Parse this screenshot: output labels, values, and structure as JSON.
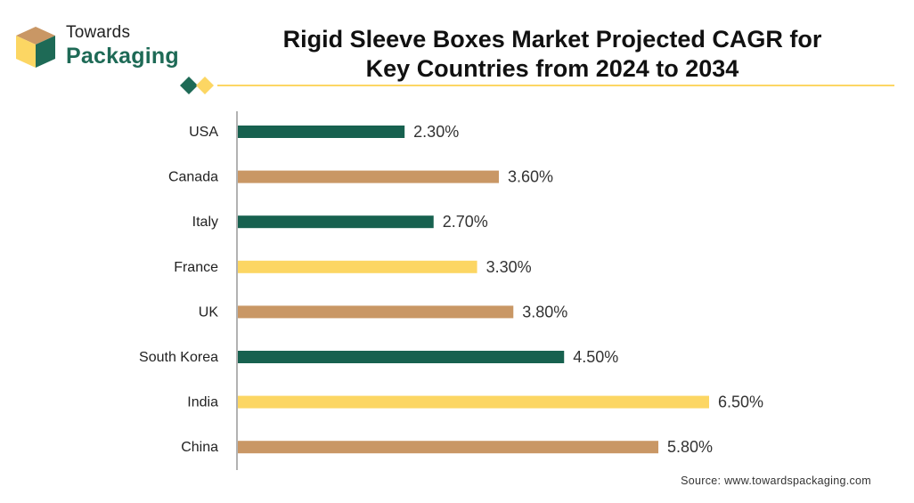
{
  "brand": {
    "line1": "Towards",
    "line2": "Packaging",
    "icon": "box-logo-icon",
    "colors": {
      "dark": "#1e6a56",
      "tan": "#c99765",
      "yellow": "#fcd663"
    }
  },
  "title": {
    "line1": "Rigid Sleeve Boxes Market Projected CAGR for",
    "line2": "Key Countries from 2024 to 2034"
  },
  "source": "Source: www.towardspackaging.com",
  "chart_data": {
    "type": "bar",
    "orientation": "horizontal",
    "categories": [
      "USA",
      "Canada",
      "Italy",
      "France",
      "UK",
      "South Korea",
      "India",
      "China"
    ],
    "values": [
      2.3,
      3.6,
      2.7,
      3.3,
      3.8,
      4.5,
      6.5,
      5.8
    ],
    "value_labels": [
      "2.30%",
      "3.60%",
      "2.70%",
      "3.30%",
      "3.80%",
      "4.50%",
      "6.50%",
      "5.80%"
    ],
    "bar_colors": [
      "#17614f",
      "#c99765",
      "#17614f",
      "#fcd663",
      "#c99765",
      "#17614f",
      "#fcd663",
      "#c99765"
    ],
    "unit": "%",
    "xlim": [
      0,
      6.5
    ],
    "grid": false,
    "legend": "none"
  }
}
